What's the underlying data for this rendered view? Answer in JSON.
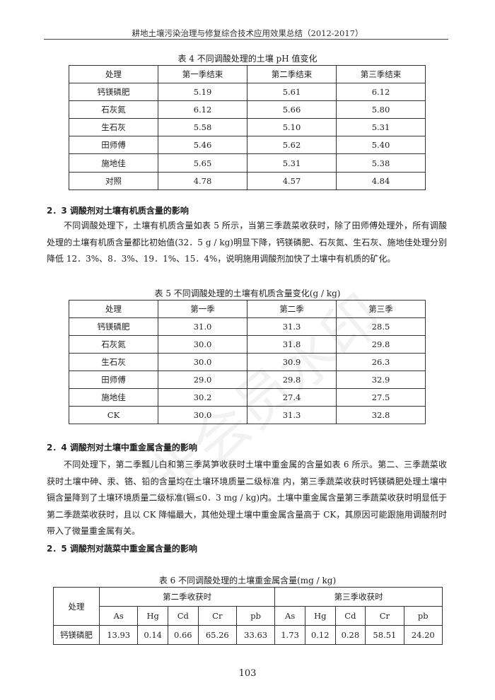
{
  "running_header": "耕地土壤污染治理与修复综合技术应用效果总结（2012-2017）",
  "table4": {
    "caption": "表 4  不同调酸处理的土壤 pH 值变化",
    "headers": [
      "处理",
      "第一季结束",
      "第二季结束",
      "第三季结束"
    ],
    "rows": [
      [
        "钙镁磷肥",
        "5.19",
        "5.61",
        "6.12"
      ],
      [
        "石灰氮",
        "6.12",
        "5.66",
        "5.80"
      ],
      [
        "生石灰",
        "5.58",
        "5.10",
        "5.31"
      ],
      [
        "田师傅",
        "5.46",
        "5.62",
        "5.40"
      ],
      [
        "施地佳",
        "5.65",
        "5.31",
        "5.38"
      ],
      [
        "对照",
        "4.78",
        "4.57",
        "4.84"
      ]
    ]
  },
  "section23": {
    "heading": "2．3 调酸剂对土壤有机质含量的影响",
    "paragraph": "不同调酸处理下，土壤有机质含量如表 5 所示，当第三季蔬菜收获时，除了田师傅处理外，所有调酸处理的土壤有机质含量都比初始值(32．5 g / kg)明显下降，钙镁磷肥、石灰氮、生石灰、施地佳处理分别降低 12．3%、8．3%、19．1%、15．4%，说明施用调酸剂加快了土壤中有机质的矿化。"
  },
  "table5": {
    "caption": "表 5  不同调酸处理的土壤有机质含量变化(g / kg)",
    "headers": [
      "处理",
      "第一季",
      "第二季",
      "第三季"
    ],
    "rows": [
      [
        "钙镁磷肥",
        "31.0",
        "31.3",
        "28.5"
      ],
      [
        "石灰氮",
        "30.0",
        "31.8",
        "29.8"
      ],
      [
        "生石灰",
        "30.0",
        "30.9",
        "26.3"
      ],
      [
        "田师傅",
        "29.0",
        "29.8",
        "32.9"
      ],
      [
        "施地佳",
        "30.2",
        "27.4",
        "27.5"
      ],
      [
        "CK",
        "30.0",
        "31.3",
        "32.8"
      ]
    ]
  },
  "section24": {
    "heading": "2．4 调酸剂对土壤中重金属含量的影响",
    "paragraph": "不同处理下，第二季瓢儿白和第三季莴笋收获时土壤中重金属的含量如表 6 所示。第二、三季蔬菜收获时土壤中砷、汞、铬、铅的含量均在土壤环境质量二级标准 内，第三季蔬菜收获时钙镁磷肥处理土壤中镉含量降到了土壤环境质量二级标准(镉≤0．3 mg / kg)内。土壤中重金属含量第三季蔬菜收获时明显低于第二季蔬菜收获时，且以 CK 降幅最大，其他处理土壤中重金属含量高于 CK，其原因可能跟施用调酸剂时带入了微量重金属有关。"
  },
  "section25": {
    "heading": "2．5 调酸剂对蔬菜中重金属含量的影响"
  },
  "table6": {
    "caption": "表 6 不同调酸处理的土壤重金属含量(mg / kg)",
    "row_header": "处理",
    "group_headers": [
      "第二季收获时",
      "第三季收获时"
    ],
    "sub_headers": [
      "As",
      "Hg",
      "Cd",
      "Cr",
      "pb",
      "As",
      "Hg",
      "Cd",
      "Cr",
      "pb"
    ],
    "rows": [
      [
        "钙镁磷肥",
        "13.93",
        "0.14",
        "0.66",
        "65.26",
        "33.63",
        "1.73",
        "0.12",
        "0.28",
        "58.51",
        "24.20"
      ]
    ]
  },
  "page_number": "103",
  "watermark": "非会员水印"
}
